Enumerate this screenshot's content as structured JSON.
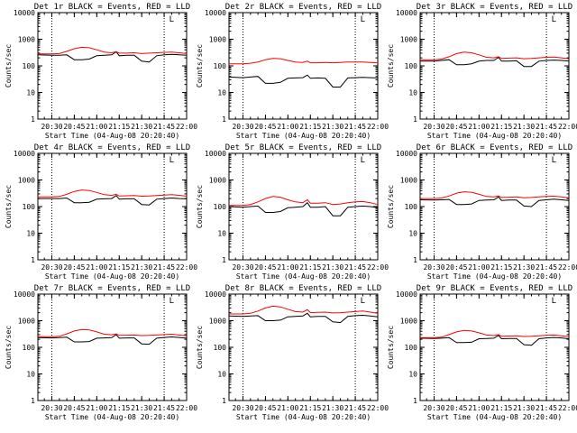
{
  "chart_data": [
    {
      "type": "line",
      "title": "Det 1r BLACK = Events, RED = LLD",
      "ylabel": "Counts/sec",
      "xlabel": "Start Time (04-Aug-08 20:20:40)",
      "yscale": "log",
      "ylim": [
        1,
        10000
      ],
      "yticks": [
        "1",
        "10",
        "100",
        "1000",
        "10000"
      ],
      "xticks": [
        "20:30",
        "20:45",
        "21:00",
        "21:15",
        "21:30",
        "21:45",
        "22:00"
      ],
      "vlines": [
        "20:30",
        "21:45"
      ],
      "flag_label": "L",
      "x": [
        "20:20",
        "20:30",
        "20:35",
        "20:40",
        "20:45",
        "20:50",
        "20:55",
        "21:00",
        "21:05",
        "21:10",
        "21:13",
        "21:15",
        "21:20",
        "21:25",
        "21:30",
        "21:35",
        "21:40",
        "21:45",
        "21:50",
        "21:55",
        "22:00"
      ],
      "series": [
        {
          "color": "#000000",
          "values": [
            260,
            250,
            250,
            260,
            170,
            170,
            180,
            240,
            250,
            260,
            340,
            240,
            250,
            250,
            150,
            140,
            240,
            260,
            270,
            260,
            250
          ]
        },
        {
          "color": "#ff0000",
          "values": [
            280,
            280,
            290,
            350,
            440,
            500,
            480,
            400,
            330,
            310,
            340,
            300,
            300,
            310,
            290,
            300,
            310,
            320,
            330,
            310,
            290
          ]
        }
      ]
    },
    {
      "type": "line",
      "title": "Det 2r BLACK = Events, RED = LLD",
      "ylabel": "Counts/sec",
      "xlabel": "Start Time (04-Aug-08 20:20:40)",
      "yscale": "log",
      "ylim": [
        1,
        10000
      ],
      "yticks": [
        "1",
        "10",
        "100",
        "1000",
        "10000"
      ],
      "xticks": [
        "20:30",
        "20:45",
        "21:00",
        "21:15",
        "21:30",
        "21:45",
        "22:00"
      ],
      "vlines": [
        "20:30",
        "21:45"
      ],
      "flag_label": "L",
      "x": [
        "20:20",
        "20:30",
        "20:35",
        "20:40",
        "20:45",
        "20:50",
        "20:55",
        "21:00",
        "21:05",
        "21:10",
        "21:13",
        "21:15",
        "21:20",
        "21:25",
        "21:30",
        "21:35",
        "21:40",
        "21:45",
        "21:50",
        "21:55",
        "22:00"
      ],
      "series": [
        {
          "color": "#000000",
          "values": [
            38,
            36,
            38,
            40,
            22,
            22,
            24,
            34,
            35,
            36,
            45,
            34,
            35,
            34,
            16,
            16,
            35,
            36,
            37,
            36,
            35
          ]
        },
        {
          "color": "#ff0000",
          "values": [
            120,
            120,
            125,
            140,
            170,
            190,
            185,
            160,
            140,
            135,
            150,
            130,
            130,
            135,
            130,
            135,
            140,
            140,
            140,
            135,
            130
          ]
        }
      ]
    },
    {
      "type": "line",
      "title": "Det 3r BLACK = Events, RED = LLD",
      "ylabel": "Counts/sec",
      "xlabel": "Start Time (04-Aug-08 20:20:40)",
      "yscale": "log",
      "ylim": [
        1,
        10000
      ],
      "yticks": [
        "1",
        "10",
        "100",
        "1000",
        "10000"
      ],
      "xticks": [
        "20:30",
        "20:45",
        "21:00",
        "21:15",
        "21:30",
        "21:45",
        "22:00"
      ],
      "vlines": [
        "20:30",
        "21:45"
      ],
      "flag_label": "L",
      "x": [
        "20:20",
        "20:30",
        "20:35",
        "20:40",
        "20:45",
        "20:50",
        "20:55",
        "21:00",
        "21:05",
        "21:10",
        "21:13",
        "21:15",
        "21:20",
        "21:25",
        "21:30",
        "21:35",
        "21:40",
        "21:45",
        "21:50",
        "21:55",
        "22:00"
      ],
      "series": [
        {
          "color": "#000000",
          "values": [
            150,
            150,
            160,
            170,
            110,
            110,
            120,
            150,
            160,
            160,
            210,
            150,
            150,
            155,
            95,
            95,
            150,
            160,
            165,
            160,
            150
          ]
        },
        {
          "color": "#ff0000",
          "values": [
            170,
            170,
            180,
            220,
            290,
            330,
            310,
            260,
            210,
            200,
            220,
            190,
            195,
            200,
            185,
            190,
            200,
            210,
            215,
            200,
            185
          ]
        }
      ]
    },
    {
      "type": "line",
      "title": "Det 4r BLACK = Events, RED = LLD",
      "ylabel": "Counts/sec",
      "xlabel": "Start Time (04-Aug-08 20:20:40)",
      "yscale": "log",
      "ylim": [
        1,
        10000
      ],
      "yticks": [
        "1",
        "10",
        "100",
        "1000",
        "10000"
      ],
      "xticks": [
        "20:30",
        "20:45",
        "21:00",
        "21:15",
        "21:30",
        "21:45",
        "22:00"
      ],
      "vlines": [
        "20:30",
        "21:45"
      ],
      "flag_label": "L",
      "x": [
        "20:20",
        "20:30",
        "20:35",
        "20:40",
        "20:45",
        "20:50",
        "20:55",
        "21:00",
        "21:05",
        "21:10",
        "21:13",
        "21:15",
        "21:20",
        "21:25",
        "21:30",
        "21:35",
        "21:40",
        "21:45",
        "21:50",
        "21:55",
        "22:00"
      ],
      "series": [
        {
          "color": "#000000",
          "values": [
            200,
            200,
            200,
            210,
            140,
            140,
            145,
            190,
            195,
            200,
            260,
            190,
            195,
            195,
            120,
            115,
            190,
            200,
            210,
            200,
            195
          ]
        },
        {
          "color": "#ff0000",
          "values": [
            230,
            230,
            240,
            290,
            370,
            420,
            400,
            340,
            280,
            265,
            290,
            250,
            255,
            260,
            245,
            250,
            260,
            270,
            280,
            265,
            245
          ]
        }
      ]
    },
    {
      "type": "line",
      "title": "Det 5r BLACK = Events, RED = LLD",
      "ylabel": "Counts/sec",
      "xlabel": "Start Time (04-Aug-08 20:20:40)",
      "yscale": "log",
      "ylim": [
        1,
        10000
      ],
      "yticks": [
        "1",
        "10",
        "100",
        "1000",
        "10000"
      ],
      "xticks": [
        "20:30",
        "20:45",
        "21:00",
        "21:15",
        "21:30",
        "21:45",
        "22:00"
      ],
      "vlines": [
        "20:30",
        "21:45"
      ],
      "flag_label": "L",
      "x": [
        "20:20",
        "20:30",
        "20:35",
        "20:40",
        "20:45",
        "20:50",
        "20:55",
        "21:00",
        "21:05",
        "21:10",
        "21:13",
        "21:15",
        "21:20",
        "21:25",
        "21:30",
        "21:35",
        "21:40",
        "21:45",
        "21:50",
        "21:55",
        "22:00"
      ],
      "series": [
        {
          "color": "#000000",
          "values": [
            100,
            95,
            100,
            105,
            60,
            60,
            65,
            90,
            95,
            100,
            140,
            95,
            95,
            100,
            45,
            45,
            95,
            100,
            105,
            100,
            90
          ]
        },
        {
          "color": "#ff0000",
          "values": [
            110,
            110,
            120,
            150,
            200,
            240,
            225,
            180,
            150,
            140,
            180,
            135,
            135,
            140,
            120,
            125,
            140,
            150,
            155,
            140,
            120
          ]
        }
      ]
    },
    {
      "type": "line",
      "title": "Det 6r BLACK = Events, RED = LLD",
      "ylabel": "Counts/sec",
      "xlabel": "Start Time (04-Aug-08 20:20:40)",
      "yscale": "log",
      "ylim": [
        1,
        10000
      ],
      "yticks": [
        "1",
        "10",
        "100",
        "1000",
        "10000"
      ],
      "xticks": [
        "20:30",
        "20:45",
        "21:00",
        "21:15",
        "21:30",
        "21:45",
        "22:00"
      ],
      "vlines": [
        "20:30",
        "21:45"
      ],
      "flag_label": "L",
      "x": [
        "20:20",
        "20:30",
        "20:35",
        "20:40",
        "20:45",
        "20:50",
        "20:55",
        "21:00",
        "21:05",
        "21:10",
        "21:13",
        "21:15",
        "21:20",
        "21:25",
        "21:30",
        "21:35",
        "21:40",
        "21:45",
        "21:50",
        "21:55",
        "22:00"
      ],
      "series": [
        {
          "color": "#000000",
          "values": [
            180,
            175,
            180,
            185,
            120,
            120,
            125,
            170,
            175,
            180,
            230,
            170,
            175,
            175,
            105,
            100,
            170,
            180,
            190,
            180,
            170
          ]
        },
        {
          "color": "#ff0000",
          "values": [
            200,
            200,
            210,
            250,
            320,
            360,
            345,
            290,
            240,
            230,
            250,
            220,
            225,
            230,
            215,
            220,
            230,
            240,
            245,
            230,
            215
          ]
        }
      ]
    },
    {
      "type": "line",
      "title": "Det 7r BLACK = Events, RED = LLD",
      "ylabel": "Counts/sec",
      "xlabel": "Start Time (04-Aug-08 20:20:40)",
      "yscale": "log",
      "ylim": [
        1,
        10000
      ],
      "yticks": [
        "1",
        "10",
        "100",
        "1000",
        "10000"
      ],
      "xticks": [
        "20:30",
        "20:45",
        "21:00",
        "21:15",
        "21:30",
        "21:45",
        "22:00"
      ],
      "vlines": [
        "20:30",
        "21:45"
      ],
      "flag_label": "L",
      "x": [
        "20:20",
        "20:30",
        "20:35",
        "20:40",
        "20:45",
        "20:50",
        "20:55",
        "21:00",
        "21:05",
        "21:10",
        "21:13",
        "21:15",
        "21:20",
        "21:25",
        "21:30",
        "21:35",
        "21:40",
        "21:45",
        "21:50",
        "21:55",
        "22:00"
      ],
      "series": [
        {
          "color": "#000000",
          "values": [
            230,
            225,
            230,
            240,
            160,
            160,
            165,
            220,
            225,
            230,
            300,
            220,
            225,
            225,
            135,
            130,
            220,
            235,
            245,
            235,
            220
          ]
        },
        {
          "color": "#ff0000",
          "values": [
            250,
            250,
            260,
            320,
            410,
            470,
            450,
            380,
            310,
            295,
            320,
            280,
            285,
            290,
            275,
            280,
            290,
            300,
            310,
            290,
            270
          ]
        }
      ]
    },
    {
      "type": "line",
      "title": "Det 8r BLACK = Events, RED = LLD",
      "ylabel": "Counts/sec",
      "xlabel": "Start Time (04-Aug-08 20:20:40)",
      "yscale": "log",
      "ylim": [
        1,
        10000
      ],
      "yticks": [
        "1",
        "10",
        "100",
        "1000",
        "10000"
      ],
      "xticks": [
        "20:30",
        "20:45",
        "21:00",
        "21:15",
        "21:30",
        "21:45",
        "22:00"
      ],
      "vlines": [
        "20:30",
        "21:45"
      ],
      "flag_label": "L",
      "x": [
        "20:20",
        "20:30",
        "20:35",
        "20:40",
        "20:45",
        "20:50",
        "20:55",
        "21:00",
        "21:05",
        "21:10",
        "21:13",
        "21:15",
        "21:20",
        "21:25",
        "21:30",
        "21:35",
        "21:40",
        "21:45",
        "21:50",
        "21:55",
        "22:00"
      ],
      "series": [
        {
          "color": "#000000",
          "values": [
            1500,
            1450,
            1500,
            1550,
            1000,
            1000,
            1050,
            1400,
            1450,
            1500,
            1900,
            1400,
            1450,
            1450,
            900,
            850,
            1450,
            1550,
            1600,
            1500,
            1400
          ]
        },
        {
          "color": "#ff0000",
          "values": [
            1800,
            1800,
            1900,
            2300,
            3000,
            3500,
            3300,
            2700,
            2200,
            2100,
            2600,
            2000,
            2050,
            2100,
            1950,
            2000,
            2100,
            2200,
            2300,
            2100,
            1900
          ]
        }
      ]
    },
    {
      "type": "line",
      "title": "Det 9r BLACK = Events, RED = LLD",
      "ylabel": "Counts/sec",
      "xlabel": "Start Time (04-Aug-08 20:20:40)",
      "yscale": "log",
      "ylim": [
        1,
        10000
      ],
      "yticks": [
        "1",
        "10",
        "100",
        "1000",
        "10000"
      ],
      "xticks": [
        "20:30",
        "20:45",
        "21:00",
        "21:15",
        "21:30",
        "21:45",
        "22:00"
      ],
      "vlines": [
        "20:30",
        "21:45"
      ],
      "flag_label": "L",
      "x": [
        "20:20",
        "20:30",
        "20:35",
        "20:40",
        "20:45",
        "20:50",
        "20:55",
        "21:00",
        "21:05",
        "21:10",
        "21:13",
        "21:15",
        "21:20",
        "21:25",
        "21:30",
        "21:35",
        "21:40",
        "21:45",
        "21:50",
        "21:55",
        "22:00"
      ],
      "series": [
        {
          "color": "#000000",
          "values": [
            220,
            215,
            220,
            230,
            150,
            150,
            155,
            210,
            215,
            220,
            280,
            210,
            215,
            215,
            125,
            120,
            210,
            225,
            235,
            225,
            210
          ]
        },
        {
          "color": "#ff0000",
          "values": [
            230,
            230,
            240,
            300,
            380,
            430,
            410,
            350,
            290,
            275,
            300,
            260,
            265,
            270,
            255,
            260,
            270,
            280,
            290,
            270,
            250
          ]
        }
      ]
    }
  ]
}
